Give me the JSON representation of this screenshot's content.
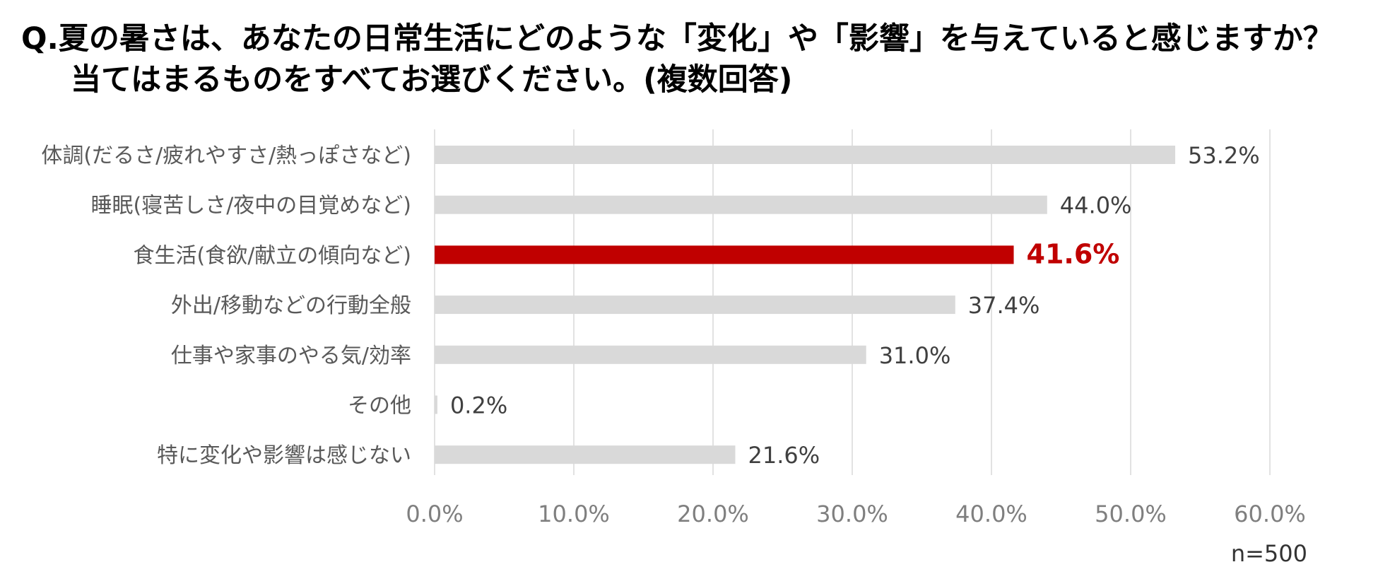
{
  "title_line1": "Q.夏の暑さは、あなたの日常生活にどのような「変化」や「影響」を与えていると感じますか？",
  "title_line2": "当てはまるものをすべてお選びください。(複数回答)",
  "note": "n=500",
  "chart_data": {
    "type": "bar",
    "orientation": "horizontal",
    "categories": [
      "体調(だるさ/疲れやすさ/熱っぽさなど)",
      "睡眠(寝苦しさ/夜中の目覚めなど)",
      "食生活(食欲/献立の傾向など)",
      "外出/移動などの行動全般",
      "仕事や家事のやる気/効率",
      "その他",
      "特に変化や影響は感じない"
    ],
    "values": [
      53.2,
      44.0,
      41.6,
      37.4,
      31.0,
      0.2,
      21.6
    ],
    "value_labels": [
      "53.2%",
      "44.0%",
      "41.6%",
      "37.4%",
      "31.0%",
      "0.2%",
      "21.6%"
    ],
    "highlight_index": 2,
    "xlim": [
      0,
      60
    ],
    "xticks": [
      0,
      10,
      20,
      30,
      40,
      50,
      60
    ],
    "xtick_labels": [
      "0.0%",
      "10.0%",
      "20.0%",
      "30.0%",
      "40.0%",
      "50.0%",
      "60.0%"
    ],
    "grid": true,
    "colors": {
      "bar": "#d9d9d9",
      "highlight": "#c00000",
      "grid": "#d9d9d9",
      "category_text": "#595959",
      "value_text": "#404040",
      "tick_text": "#7f7f7f"
    }
  }
}
